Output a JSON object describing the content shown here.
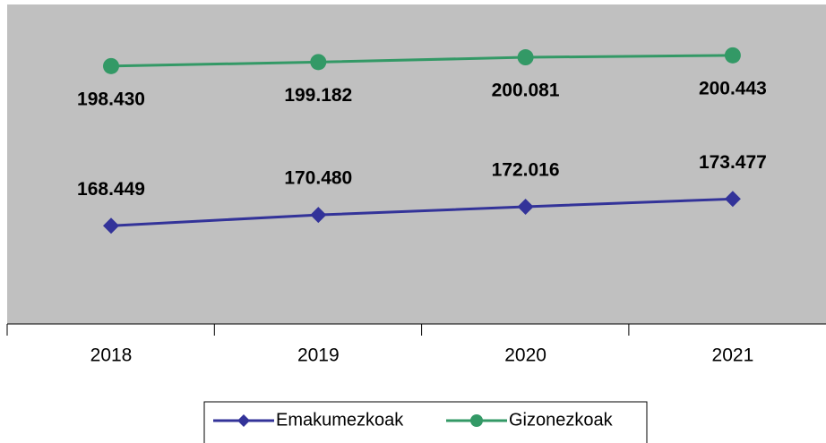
{
  "chart_data": {
    "type": "line",
    "categories": [
      "2018",
      "2019",
      "2020",
      "2021"
    ],
    "series": [
      {
        "name": "Emakumezkoak",
        "color": "#333399",
        "marker": "diamond",
        "values": [
          168449,
          170480,
          172016,
          173477
        ],
        "value_labels": [
          "168.449",
          "170.480",
          "172.016",
          "173.477"
        ]
      },
      {
        "name": "Gizonezkoak",
        "color": "#339966",
        "marker": "circle",
        "values": [
          198430,
          199182,
          200081,
          200443
        ],
        "value_labels": [
          "198.430",
          "199.182",
          "200.081",
          "200.443"
        ]
      }
    ],
    "ylim": [
      150000,
      210000
    ],
    "legend": "bottom"
  }
}
